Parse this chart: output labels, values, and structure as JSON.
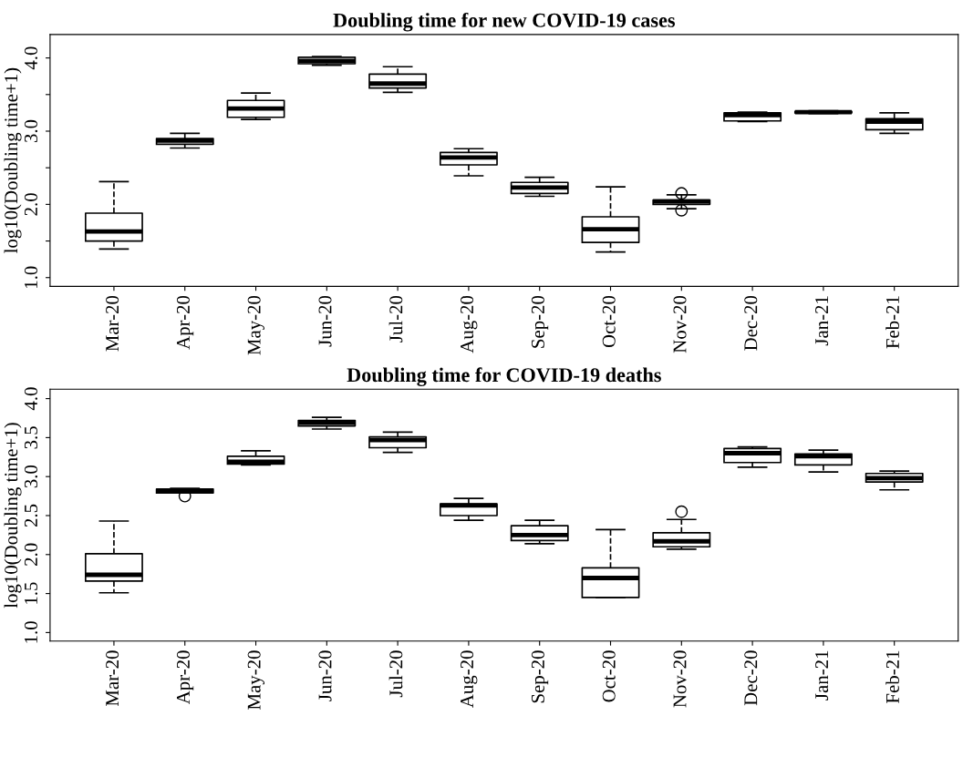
{
  "chart_data": [
    {
      "type": "box",
      "title": "Doubling time for new COVID-19 cases",
      "ylabel": "log10(Doubling time+1)",
      "categories": [
        "Mar-20",
        "Apr-20",
        "May-20",
        "Jun-20",
        "Jul-20",
        "Aug-20",
        "Sep-20",
        "Oct-20",
        "Nov-20",
        "Dec-20",
        "Jan-21",
        "Feb-21"
      ],
      "ylim": [
        0.88,
        4.32
      ],
      "yticks": [
        {
          "value": 1,
          "label": "1.0"
        },
        {
          "value": 1.5,
          "label": null
        },
        {
          "value": 2,
          "label": "2.0"
        },
        {
          "value": 2.5,
          "label": null
        },
        {
          "value": 3,
          "label": "3.0"
        },
        {
          "value": 3.5,
          "label": null
        },
        {
          "value": 4,
          "label": "4.0"
        }
      ],
      "grid": false,
      "line_style": "dashed",
      "boxes": [
        {
          "low": 1.39,
          "q1": 1.5,
          "median": 1.63,
          "q3": 1.88,
          "high": 2.31
        },
        {
          "low": 2.77,
          "q1": 2.82,
          "median": 2.87,
          "q3": 2.9,
          "high": 2.97
        },
        {
          "low": 3.16,
          "q1": 3.19,
          "median": 3.31,
          "q3": 3.42,
          "high": 3.52
        },
        {
          "low": 3.9,
          "q1": 3.92,
          "median": 3.96,
          "q3": 4.01,
          "high": 4.02
        },
        {
          "low": 3.53,
          "q1": 3.59,
          "median": 3.65,
          "q3": 3.78,
          "high": 3.88
        },
        {
          "low": 2.39,
          "q1": 2.54,
          "median": 2.64,
          "q3": 2.71,
          "high": 2.76
        },
        {
          "low": 2.11,
          "q1": 2.15,
          "median": 2.23,
          "q3": 2.3,
          "high": 2.37
        },
        {
          "low": 1.35,
          "q1": 1.48,
          "median": 1.66,
          "q3": 1.83,
          "high": 2.24
        },
        {
          "low": 1.94,
          "q1": 2.0,
          "median": 2.04,
          "q3": 2.06,
          "high": 2.13,
          "outliers": [
            2.15,
            1.92
          ]
        },
        {
          "low": 3.13,
          "q1": 3.14,
          "median": 3.22,
          "q3": 3.25,
          "high": 3.26
        },
        {
          "low": 3.24,
          "q1": 3.25,
          "median": 3.26,
          "q3": 3.27,
          "high": 3.28
        },
        {
          "low": 2.97,
          "q1": 3.02,
          "median": 3.13,
          "q3": 3.17,
          "high": 3.25
        }
      ]
    },
    {
      "type": "box",
      "title": "Doubling time for COVID-19 deaths",
      "ylabel": "log10(Doubling time+1)",
      "categories": [
        "Mar-20",
        "Apr-20",
        "May-20",
        "Jun-20",
        "Jul-20",
        "Aug-20",
        "Sep-20",
        "Oct-20",
        "Nov-20",
        "Dec-20",
        "Jan-21",
        "Feb-21"
      ],
      "ylim": [
        0.89,
        4.12
      ],
      "yticks": [
        {
          "value": 1,
          "label": "1.0"
        },
        1.5,
        {
          "value": 2,
          "label": "2.0"
        },
        2.5,
        {
          "value": 3,
          "label": "3.0"
        },
        3.5,
        {
          "value": 4,
          "label": "4.0"
        }
      ],
      "grid": false,
      "line_style": "dashed",
      "boxes": [
        {
          "low": 1.51,
          "q1": 1.66,
          "median": 1.74,
          "q3": 2.01,
          "high": 2.43
        },
        {
          "low": 2.79,
          "q1": 2.79,
          "median": 2.81,
          "q3": 2.84,
          "high": 2.85,
          "outliers": [
            2.75
          ]
        },
        {
          "low": 3.15,
          "q1": 3.16,
          "median": 3.19,
          "q3": 3.26,
          "high": 3.33
        },
        {
          "low": 3.61,
          "q1": 3.65,
          "median": 3.69,
          "q3": 3.72,
          "high": 3.76
        },
        {
          "low": 3.31,
          "q1": 3.37,
          "median": 3.47,
          "q3": 3.51,
          "high": 3.57
        },
        {
          "low": 2.44,
          "q1": 2.5,
          "median": 2.63,
          "q3": 2.65,
          "high": 2.72
        },
        {
          "low": 2.14,
          "q1": 2.18,
          "median": 2.25,
          "q3": 2.37,
          "high": 2.44
        },
        {
          "low": 1.45,
          "q1": 1.45,
          "median": 1.7,
          "q3": 1.83,
          "high": 2.32
        },
        {
          "low": 2.07,
          "q1": 2.1,
          "median": 2.17,
          "q3": 2.28,
          "high": 2.45,
          "outliers": [
            2.55
          ]
        },
        {
          "low": 3.12,
          "q1": 3.18,
          "median": 3.3,
          "q3": 3.36,
          "high": 3.38
        },
        {
          "low": 3.06,
          "q1": 3.15,
          "median": 3.26,
          "q3": 3.29,
          "high": 3.34
        },
        {
          "low": 2.83,
          "q1": 2.93,
          "median": 2.98,
          "q3": 3.04,
          "high": 3.07
        }
      ]
    }
  ]
}
